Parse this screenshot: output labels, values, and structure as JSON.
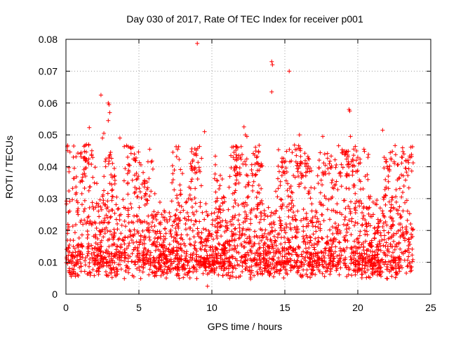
{
  "chart_data": {
    "type": "scatter",
    "title": "Day 030 of 2017, Rate Of TEC Index for receiver p001",
    "xlabel": "GPS time / hours",
    "ylabel": "ROTI / TECUs",
    "xlim": [
      0,
      25
    ],
    "ylim": [
      0,
      0.08
    ],
    "xticks": [
      0,
      5,
      10,
      15,
      20,
      25
    ],
    "yticks": [
      0,
      0.01,
      0.02,
      0.03,
      0.04,
      0.05,
      0.06,
      0.07,
      0.08
    ],
    "xtick_labels": [
      "0",
      "5",
      "10",
      "15",
      "20",
      "25"
    ],
    "ytick_labels": [
      "0",
      "0.01",
      "0.02",
      "0.03",
      "0.04",
      "0.05",
      "0.06",
      "0.07",
      "0.08"
    ],
    "grid": true,
    "marker": "+",
    "color": "#ff0000",
    "x_extent": [
      0,
      23.8
    ],
    "series_summary": "Dense band of ROTI values mostly between 0.003 and 0.03 TECU/min across 0-23.8 h, with outliers",
    "outliers": [
      {
        "x": 2.4,
        "y": 0.0625
      },
      {
        "x": 2.9,
        "y": 0.06
      },
      {
        "x": 2.95,
        "y": 0.0595
      },
      {
        "x": 3.0,
        "y": 0.057
      },
      {
        "x": 2.9,
        "y": 0.0545
      },
      {
        "x": 1.6,
        "y": 0.0523
      },
      {
        "x": 2.6,
        "y": 0.0505
      },
      {
        "x": 2.5,
        "y": 0.049
      },
      {
        "x": 3.7,
        "y": 0.049
      },
      {
        "x": 9.0,
        "y": 0.0787
      },
      {
        "x": 9.5,
        "y": 0.051
      },
      {
        "x": 12.2,
        "y": 0.0525
      },
      {
        "x": 12.3,
        "y": 0.05
      },
      {
        "x": 12.4,
        "y": 0.0495
      },
      {
        "x": 14.1,
        "y": 0.073
      },
      {
        "x": 14.15,
        "y": 0.072
      },
      {
        "x": 14.1,
        "y": 0.0635
      },
      {
        "x": 15.3,
        "y": 0.07
      },
      {
        "x": 19.4,
        "y": 0.058
      },
      {
        "x": 19.45,
        "y": 0.0575
      },
      {
        "x": 21.7,
        "y": 0.0515
      },
      {
        "x": 16.0,
        "y": 0.05
      },
      {
        "x": 17.6,
        "y": 0.0495
      },
      {
        "x": 19.5,
        "y": 0.0495
      },
      {
        "x": 9.7,
        "y": 0.0025
      }
    ]
  }
}
